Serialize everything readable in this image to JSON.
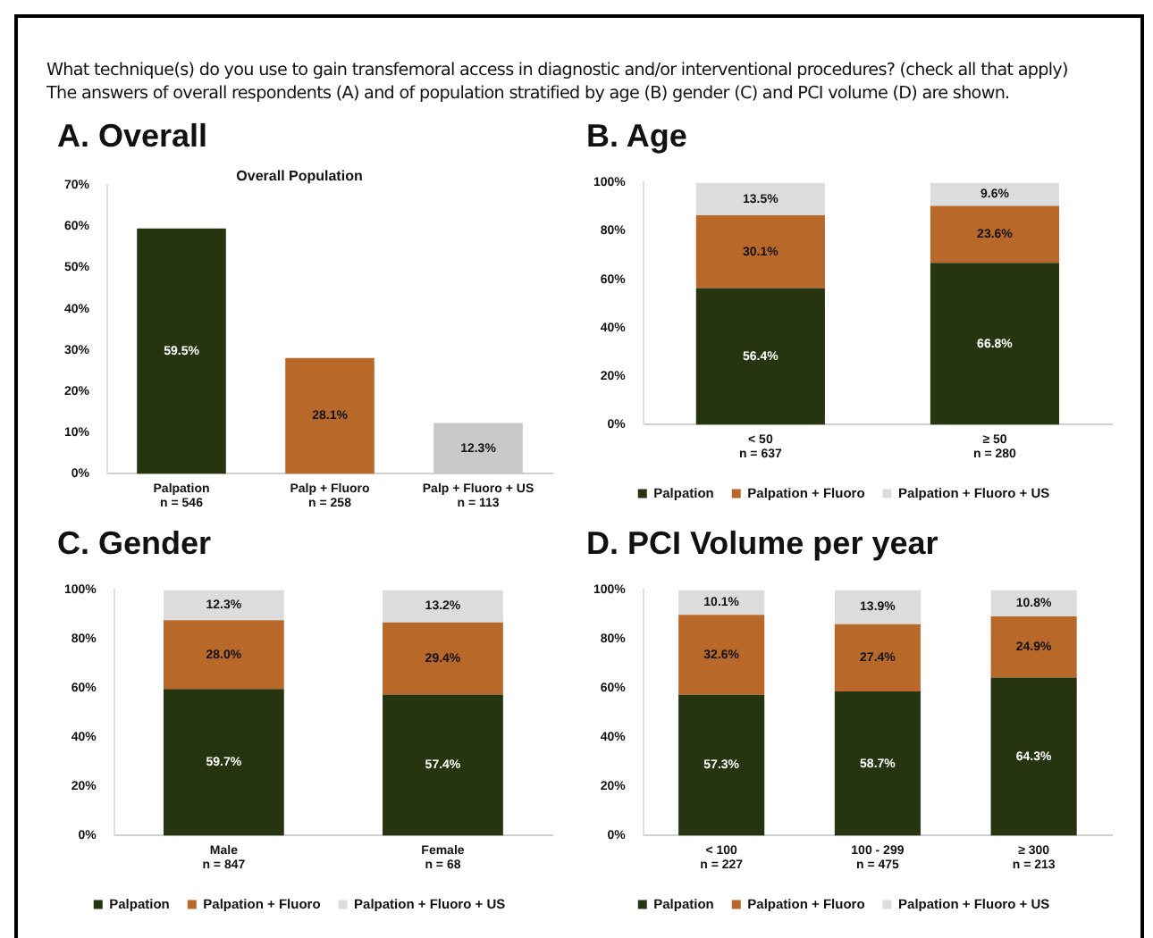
{
  "chart_data": [
    {
      "type": "bar",
      "title": "A. Overall",
      "subtitle": "Overall Population",
      "annotations": [
        "What technique(s) do you use to gain transfemoral access in diagnostic and/or interventional procedures? (check all that apply)",
        "The answers of overall respondents (A) and of population stratified by age (B) gender (C) and PCI volume (D) are shown."
      ],
      "categories": [
        "Palpation\nn = 546",
        "Palp + Fluoro\nn = 258",
        "Palp + Fluoro + US\nn = 113"
      ],
      "values": [
        59.5,
        28.1,
        12.3
      ],
      "colors": [
        "#263410",
        "#b8692a",
        "#c8c8c8"
      ],
      "value_labels": [
        "59.5%",
        "28.1%",
        "12.3%"
      ],
      "ylim": [
        0,
        70
      ],
      "yticks": [
        {
          "value": 0,
          "label": "0%"
        },
        {
          "value": 10,
          "label": "10%"
        },
        {
          "value": 20,
          "label": "20%"
        },
        {
          "value": 30,
          "label": "30%"
        },
        {
          "value": 40,
          "label": "40%"
        },
        {
          "value": 50,
          "label": "50%"
        },
        {
          "value": 60,
          "label": "60%"
        },
        {
          "value": 70,
          "label": "70%"
        }
      ],
      "grid": false,
      "legend": false
    },
    {
      "type": "bar",
      "title": "B. Age",
      "stacked": true,
      "categories": [
        "< 50\nn = 637",
        "≥ 50\nn = 280"
      ],
      "series": [
        {
          "name": "Palpation",
          "color": "#263410",
          "values": [
            56.4,
            66.8
          ],
          "value_labels": [
            "56.4%",
            "66.8%"
          ]
        },
        {
          "name": "Palpation + Fluoro",
          "color": "#b8692a",
          "values": [
            30.1,
            23.6
          ],
          "value_labels": [
            "30.1%",
            "23.6%"
          ]
        },
        {
          "name": "Palpation + Fluoro + US",
          "color": "#dcdcdc",
          "values": [
            13.5,
            9.6
          ],
          "value_labels": [
            "13.5%",
            "9.6%"
          ]
        }
      ],
      "ylim": [
        0,
        100
      ],
      "yticks": [
        {
          "value": 0,
          "label": "0%"
        },
        {
          "value": 20,
          "label": "20%"
        },
        {
          "value": 40,
          "label": "40%"
        },
        {
          "value": 60,
          "label": "60%"
        },
        {
          "value": 80,
          "label": "80%"
        },
        {
          "value": 100,
          "label": "100%"
        }
      ],
      "grid": false,
      "legend": "bottom"
    },
    {
      "type": "bar",
      "title": "C. Gender",
      "stacked": true,
      "categories": [
        "Male\nn = 847",
        "Female\nn = 68"
      ],
      "series": [
        {
          "name": "Palpation",
          "color": "#263410",
          "values": [
            59.7,
            57.4
          ],
          "value_labels": [
            "59.7%",
            "57.4%"
          ]
        },
        {
          "name": "Palpation + Fluoro",
          "color": "#b8692a",
          "values": [
            28.0,
            29.4
          ],
          "value_labels": [
            "28.0%",
            "29.4%"
          ]
        },
        {
          "name": "Palpation + Fluoro + US",
          "color": "#dcdcdc",
          "values": [
            12.3,
            13.2
          ],
          "value_labels": [
            "12.3%",
            "13.2%"
          ]
        }
      ],
      "ylim": [
        0,
        100
      ],
      "yticks": [
        {
          "value": 0,
          "label": "0%"
        },
        {
          "value": 20,
          "label": "20%"
        },
        {
          "value": 40,
          "label": "40%"
        },
        {
          "value": 60,
          "label": "60%"
        },
        {
          "value": 80,
          "label": "80%"
        },
        {
          "value": 100,
          "label": "100%"
        }
      ],
      "grid": false,
      "legend": "bottom"
    },
    {
      "type": "bar",
      "title": "D. PCI Volume per year",
      "stacked": true,
      "categories": [
        "< 100\nn = 227",
        "100 - 299\nn = 475",
        "≥ 300\nn = 213"
      ],
      "series": [
        {
          "name": "Palpation",
          "color": "#263410",
          "values": [
            57.3,
            58.7,
            64.3
          ],
          "value_labels": [
            "57.3%",
            "58.7%",
            "64.3%"
          ]
        },
        {
          "name": "Palpation + Fluoro",
          "color": "#b8692a",
          "values": [
            32.6,
            27.4,
            24.9
          ],
          "value_labels": [
            "32.6%",
            "27.4%",
            "24.9%"
          ]
        },
        {
          "name": "Palpation + Fluoro + US",
          "color": "#dcdcdc",
          "values": [
            10.1,
            13.9,
            10.8
          ],
          "value_labels": [
            "10.1%",
            "13.9%",
            "10.8%"
          ]
        }
      ],
      "ylim": [
        0,
        100
      ],
      "yticks": [
        {
          "value": 0,
          "label": "0%"
        },
        {
          "value": 20,
          "label": "20%"
        },
        {
          "value": 40,
          "label": "40%"
        },
        {
          "value": 60,
          "label": "60%"
        },
        {
          "value": 80,
          "label": "80%"
        },
        {
          "value": 100,
          "label": "100%"
        }
      ],
      "grid": false,
      "legend": "bottom"
    }
  ]
}
